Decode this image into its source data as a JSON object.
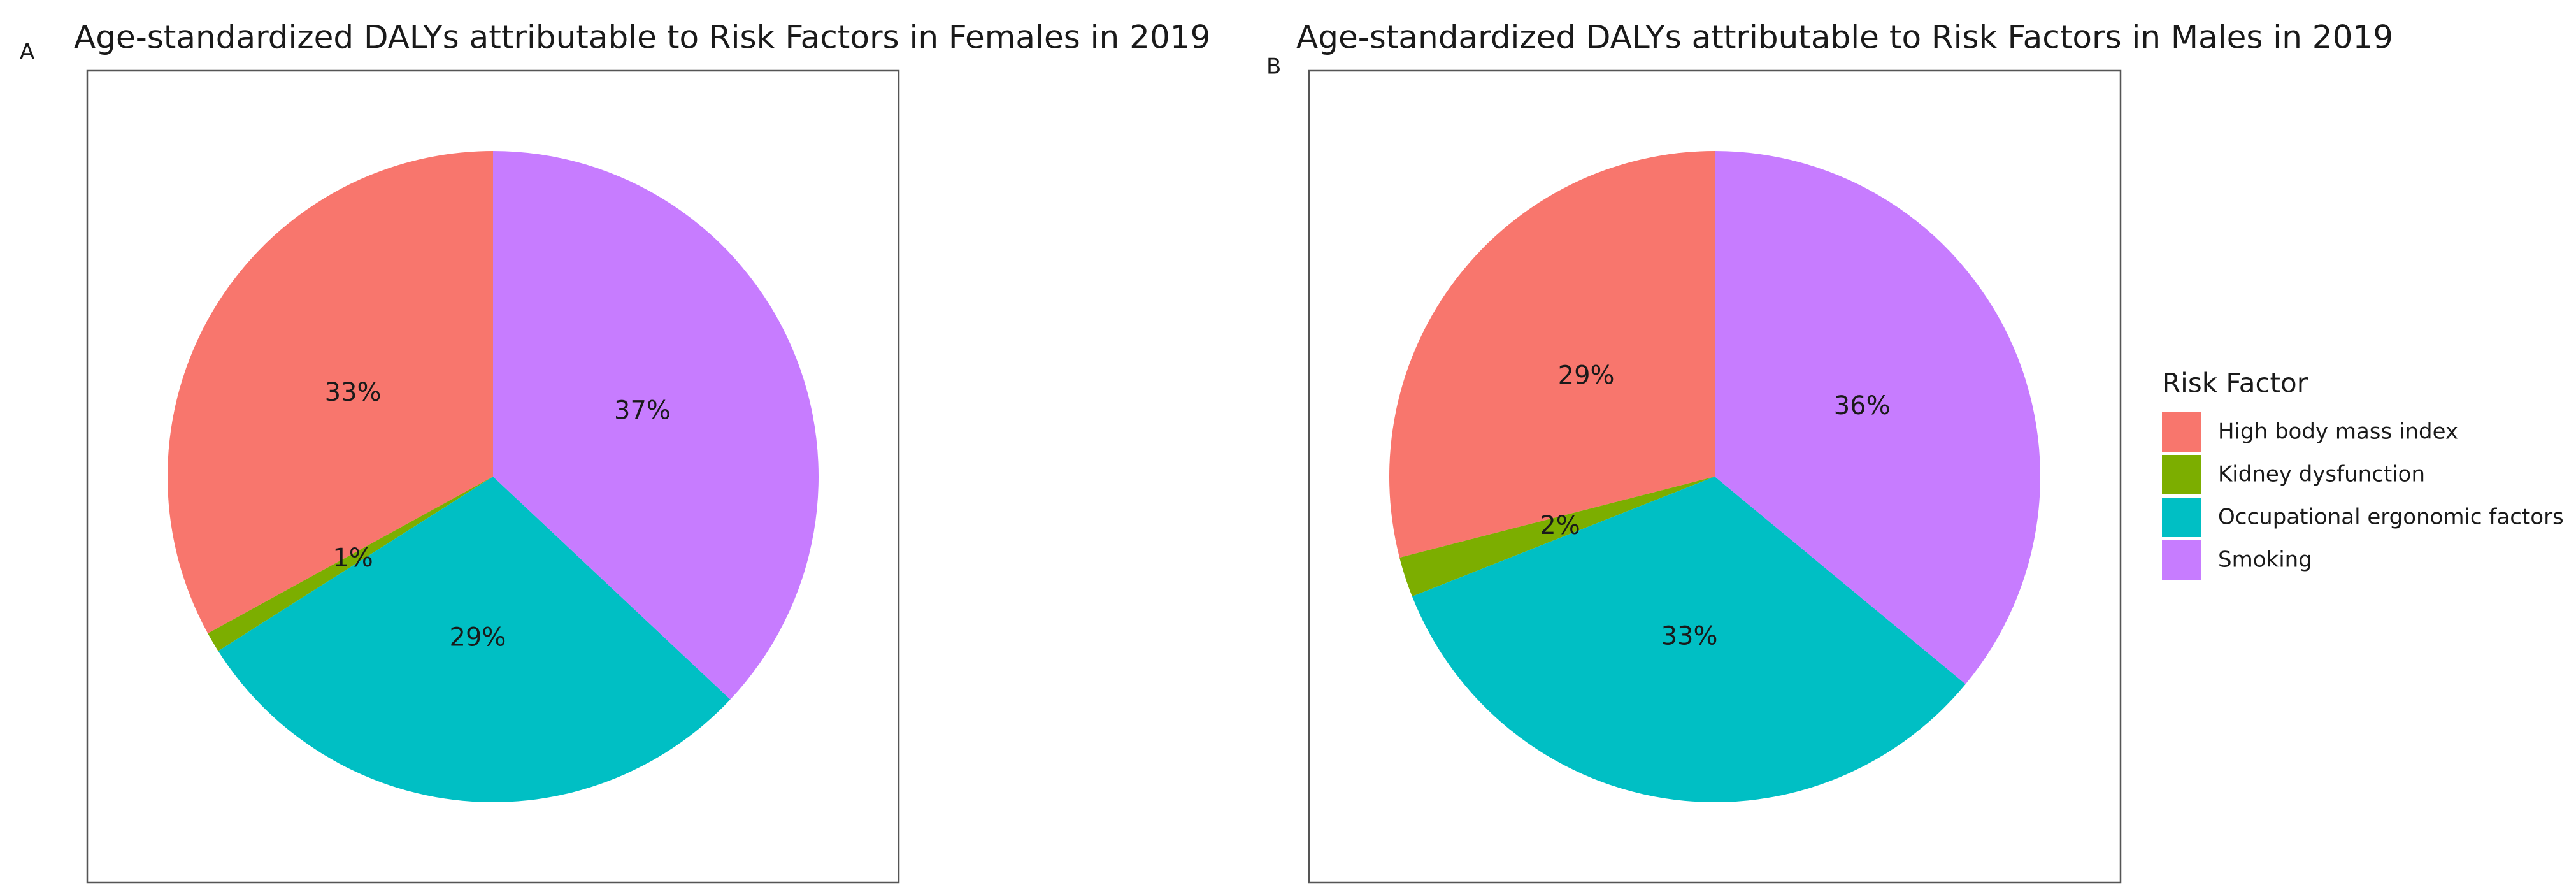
{
  "chart_data": [
    {
      "type": "pie",
      "panel": "A",
      "title": "Age-standardized DALYs attributable to Risk Factors in Females in 2019",
      "categories": [
        "High body mass index",
        "Kidney dysfunction",
        "Occupational ergonomic factors",
        "Smoking"
      ],
      "values": [
        33,
        1,
        29,
        37
      ],
      "value_labels": [
        "33%",
        "1%",
        "29%",
        "37%"
      ],
      "colors": [
        "#f8766d",
        "#7cae00",
        "#00bfc4",
        "#c77cff"
      ]
    },
    {
      "type": "pie",
      "panel": "B",
      "title": "Age-standardized DALYs attributable to Risk Factors in Males in 2019",
      "categories": [
        "High body mass index",
        "Kidney dysfunction",
        "Occupational ergonomic factors",
        "Smoking"
      ],
      "values": [
        29,
        2,
        33,
        36
      ],
      "value_labels": [
        "29%",
        "2%",
        "33%",
        "36%"
      ],
      "colors": [
        "#f8766d",
        "#7cae00",
        "#00bfc4",
        "#c77cff"
      ],
      "legend_title": "Risk Factor"
    }
  ]
}
